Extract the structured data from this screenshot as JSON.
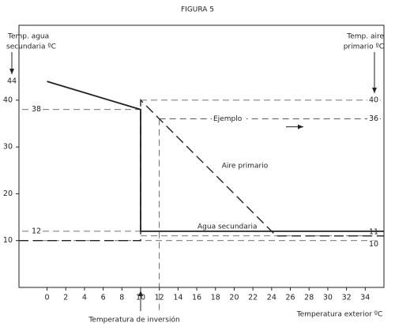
{
  "chart_data": {
    "type": "line",
    "title": "FIGURA 5",
    "y_label_left": [
      "Temp. agua",
      "secundaria ºC"
    ],
    "y_label_right": [
      "Temp. aire",
      "primario ºC"
    ],
    "x_label": "Temperatura exterior ºC",
    "xlim": [
      -3,
      36
    ],
    "ylim": [
      0,
      56
    ],
    "xticks": [
      0,
      2,
      4,
      6,
      8,
      10,
      12,
      14,
      16,
      18,
      20,
      22,
      24,
      26,
      28,
      30,
      32,
      34
    ],
    "yticks": [
      10,
      20,
      30,
      40
    ],
    "series": [
      {
        "name": "Agua secundaria",
        "color": "#222222",
        "dash": false,
        "x": [
          0,
          10,
          10,
          36
        ],
        "values": [
          44,
          38,
          12,
          12
        ]
      },
      {
        "name": "Aire primario",
        "color": "#222222",
        "dash": true,
        "x": [
          -3,
          10,
          10,
          12,
          24.5,
          36
        ],
        "values": [
          10,
          10,
          40,
          36,
          11,
          11
        ]
      }
    ],
    "left_levels": [
      44,
      38,
      12
    ],
    "right_levels": [
      40,
      36,
      11,
      10
    ],
    "inversion": {
      "x": 10,
      "label": "Temperatura de inversión"
    },
    "example": {
      "x": 12,
      "label": "Ejemplo"
    }
  }
}
